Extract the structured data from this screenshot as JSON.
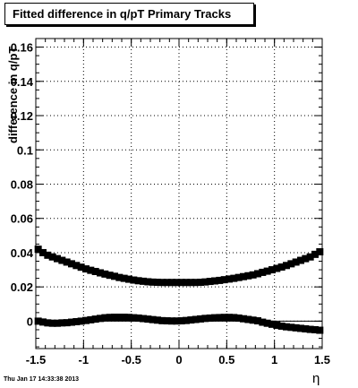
{
  "title": "Fitted difference in q/pT  Primary Tracks",
  "timestamp": "Thu Jan 17 14:33:38 2013",
  "chart_data": {
    "type": "scatter",
    "xlabel": "η",
    "ylabel": "difference in q/pT",
    "xlim": [
      -1.5,
      1.5
    ],
    "ylim": [
      -0.016,
      0.165
    ],
    "grid": true,
    "x_ticks": [
      "-1.5",
      "-1",
      "-0.5",
      "0",
      "0.5",
      "1",
      "1.5"
    ],
    "x_tick_values": [
      -1.5,
      -1,
      -0.5,
      0,
      0.5,
      1,
      1.5
    ],
    "y_ticks": [
      "0",
      "0.02",
      "0.04",
      "0.06",
      "0.08",
      "0.1",
      "0.12",
      "0.14",
      "0.16"
    ],
    "y_tick_values": [
      0,
      0.02,
      0.04,
      0.06,
      0.08,
      0.1,
      0.12,
      0.14,
      0.16
    ],
    "reference_line_y": 0,
    "series": [
      {
        "x": [
          -1.475,
          -1.425,
          -1.375,
          -1.325,
          -1.275,
          -1.225,
          -1.175,
          -1.125,
          -1.075,
          -1.025,
          -0.975,
          -0.925,
          -0.875,
          -0.825,
          -0.775,
          -0.725,
          -0.675,
          -0.625,
          -0.575,
          -0.525,
          -0.475,
          -0.425,
          -0.375,
          -0.325,
          -0.275,
          -0.225,
          -0.175,
          -0.125,
          -0.075,
          -0.025,
          0.025,
          0.075,
          0.125,
          0.175,
          0.225,
          0.275,
          0.325,
          0.375,
          0.425,
          0.475,
          0.525,
          0.575,
          0.625,
          0.675,
          0.725,
          0.775,
          0.825,
          0.875,
          0.925,
          0.975,
          1.025,
          1.075,
          1.125,
          1.175,
          1.225,
          1.275,
          1.325,
          1.375,
          1.425,
          1.475
        ],
        "y": [
          0.042,
          0.04,
          0.0385,
          0.0375,
          0.0365,
          0.0355,
          0.0345,
          0.0335,
          0.0325,
          0.0315,
          0.0305,
          0.0297,
          0.029,
          0.0282,
          0.0275,
          0.0268,
          0.0262,
          0.0255,
          0.025,
          0.0245,
          0.024,
          0.0236,
          0.0233,
          0.023,
          0.0228,
          0.0227,
          0.0226,
          0.0226,
          0.0226,
          0.0226,
          0.0226,
          0.0226,
          0.0226,
          0.0226,
          0.0227,
          0.0229,
          0.0232,
          0.0235,
          0.0238,
          0.0242,
          0.0246,
          0.025,
          0.0255,
          0.026,
          0.0265,
          0.027,
          0.0277,
          0.0285,
          0.0292,
          0.03,
          0.0308,
          0.0316,
          0.0325,
          0.0335,
          0.0345,
          0.0355,
          0.0365,
          0.0375,
          0.039,
          0.0405
        ]
      },
      {
        "x": [
          -1.475,
          -1.425,
          -1.375,
          -1.325,
          -1.275,
          -1.225,
          -1.175,
          -1.125,
          -1.075,
          -1.025,
          -0.975,
          -0.925,
          -0.875,
          -0.825,
          -0.775,
          -0.725,
          -0.675,
          -0.625,
          -0.575,
          -0.525,
          -0.475,
          -0.425,
          -0.375,
          -0.325,
          -0.275,
          -0.225,
          -0.175,
          -0.125,
          -0.075,
          -0.025,
          0.025,
          0.075,
          0.125,
          0.175,
          0.225,
          0.275,
          0.325,
          0.375,
          0.425,
          0.475,
          0.525,
          0.575,
          0.625,
          0.675,
          0.725,
          0.775,
          0.825,
          0.875,
          0.925,
          0.975,
          1.025,
          1.075,
          1.125,
          1.175,
          1.225,
          1.275,
          1.325,
          1.375,
          1.425,
          1.475
        ],
        "y": [
          0.0,
          -0.0005,
          -0.001,
          -0.0012,
          -0.0012,
          -0.001,
          -0.0009,
          -0.0006,
          -0.0003,
          0.0,
          0.0004,
          0.0008,
          0.0012,
          0.0016,
          0.002,
          0.0022,
          0.0023,
          0.0023,
          0.0023,
          0.0022,
          0.002,
          0.0018,
          0.0015,
          0.0012,
          0.0009,
          0.0006,
          0.0003,
          0.0002,
          0.0001,
          0.0001,
          0.0002,
          0.0004,
          0.0007,
          0.001,
          0.0013,
          0.0016,
          0.0018,
          0.002,
          0.0021,
          0.0022,
          0.0022,
          0.0021,
          0.0018,
          0.0014,
          0.001,
          0.0006,
          0.0002,
          -0.0006,
          -0.0012,
          -0.0018,
          -0.0024,
          -0.0029,
          -0.0033,
          -0.0036,
          -0.0039,
          -0.0042,
          -0.0045,
          -0.0048,
          -0.005,
          -0.0053
        ]
      }
    ]
  }
}
